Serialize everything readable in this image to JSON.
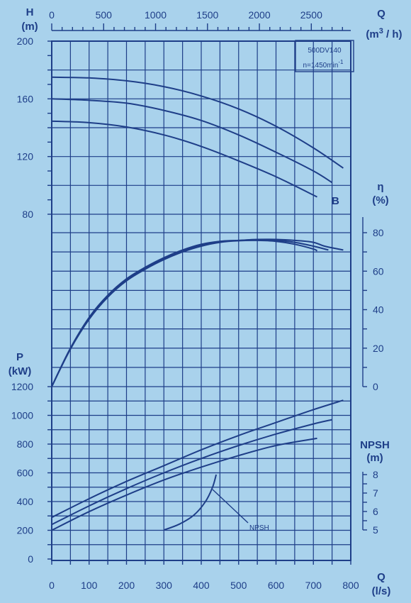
{
  "chart_data": {
    "type": "line",
    "title": "500DV140",
    "subtitle": "n=1450min-1",
    "axes": {
      "q_ls": {
        "label": "Q",
        "unit": "(l/s)",
        "range": [
          0,
          800
        ],
        "ticks": [
          0,
          100,
          200,
          300,
          400,
          500,
          600,
          700,
          800
        ]
      },
      "q_m3h": {
        "label": "Q",
        "unit": "(m3 / h)",
        "range": [
          0,
          2880
        ],
        "ticks": [
          0,
          500,
          1000,
          1500,
          2000,
          2500
        ]
      },
      "head": {
        "label": "H",
        "unit": "(m)",
        "range": [
          80,
          200
        ],
        "ticks": [
          80,
          120,
          160,
          200
        ]
      },
      "eff": {
        "label": "η",
        "unit": "(%)",
        "range": [
          0,
          80
        ],
        "ticks": [
          0,
          20,
          40,
          60,
          80
        ]
      },
      "power": {
        "label": "P",
        "unit": "(kW)",
        "range": [
          0,
          1200
        ],
        "ticks": [
          0,
          200,
          400,
          600,
          800,
          1000,
          1200
        ]
      },
      "npsh": {
        "label": "NPSH",
        "unit": "(m)",
        "range": [
          5,
          8
        ],
        "ticks": [
          5,
          6,
          7,
          8
        ]
      }
    },
    "head_series": [
      {
        "points": [
          [
            0,
            175
          ],
          [
            100,
            174.5
          ],
          [
            200,
            172.5
          ],
          [
            300,
            168.5
          ],
          [
            400,
            162
          ],
          [
            500,
            153
          ],
          [
            600,
            141
          ],
          [
            700,
            126
          ],
          [
            780,
            112
          ]
        ]
      },
      {
        "points": [
          [
            0,
            160
          ],
          [
            100,
            159
          ],
          [
            200,
            157
          ],
          [
            300,
            152
          ],
          [
            400,
            145
          ],
          [
            500,
            135
          ],
          [
            600,
            123
          ],
          [
            700,
            110
          ],
          [
            750,
            102
          ]
        ]
      },
      {
        "points": [
          [
            0,
            144.5
          ],
          [
            100,
            143.5
          ],
          [
            200,
            140.5
          ],
          [
            300,
            135
          ],
          [
            400,
            127
          ],
          [
            500,
            117
          ],
          [
            600,
            106
          ],
          [
            710,
            92
          ]
        ],
        "label": "B"
      }
    ],
    "efficiency_series": [
      {
        "points": [
          [
            0,
            0
          ],
          [
            50,
            20
          ],
          [
            100,
            36
          ],
          [
            150,
            47.5
          ],
          [
            200,
            56
          ],
          [
            250,
            62
          ],
          [
            300,
            67
          ],
          [
            350,
            71
          ],
          [
            400,
            74
          ],
          [
            450,
            75.5
          ],
          [
            500,
            76
          ],
          [
            550,
            76.5
          ],
          [
            600,
            76.5
          ],
          [
            650,
            76
          ],
          [
            700,
            75
          ],
          [
            730,
            73
          ],
          [
            780,
            71
          ]
        ]
      },
      {
        "points": [
          [
            0,
            0
          ],
          [
            50,
            20
          ],
          [
            100,
            35.5
          ],
          [
            150,
            47
          ],
          [
            200,
            55.5
          ],
          [
            250,
            61.5
          ],
          [
            300,
            66.5
          ],
          [
            350,
            70.5
          ],
          [
            400,
            73.5
          ],
          [
            450,
            75.5
          ],
          [
            500,
            76
          ],
          [
            550,
            76.3
          ],
          [
            600,
            76
          ],
          [
            650,
            75
          ],
          [
            700,
            73
          ],
          [
            740,
            71
          ]
        ]
      },
      {
        "points": [
          [
            0,
            0
          ],
          [
            50,
            19.5
          ],
          [
            100,
            35
          ],
          [
            150,
            46.5
          ],
          [
            200,
            55
          ],
          [
            250,
            61
          ],
          [
            300,
            66
          ],
          [
            350,
            70
          ],
          [
            400,
            73
          ],
          [
            450,
            75
          ],
          [
            500,
            75.8
          ],
          [
            550,
            76
          ],
          [
            600,
            75.5
          ],
          [
            650,
            74
          ],
          [
            700,
            71.5
          ],
          [
            710,
            70.5
          ]
        ]
      }
    ],
    "power_series": [
      {
        "points": [
          [
            0,
            290
          ],
          [
            100,
            420
          ],
          [
            200,
            540
          ],
          [
            300,
            650
          ],
          [
            400,
            760
          ],
          [
            500,
            860
          ],
          [
            600,
            950
          ],
          [
            700,
            1040
          ],
          [
            780,
            1105
          ]
        ]
      },
      {
        "points": [
          [
            0,
            240
          ],
          [
            100,
            370
          ],
          [
            200,
            490
          ],
          [
            300,
            600
          ],
          [
            400,
            700
          ],
          [
            500,
            790
          ],
          [
            600,
            870
          ],
          [
            700,
            940
          ],
          [
            750,
            970
          ]
        ]
      },
      {
        "points": [
          [
            0,
            200
          ],
          [
            100,
            330
          ],
          [
            200,
            445
          ],
          [
            300,
            550
          ],
          [
            400,
            640
          ],
          [
            500,
            720
          ],
          [
            600,
            790
          ],
          [
            710,
            840
          ]
        ]
      }
    ],
    "npsh_series": {
      "label": "NPSH",
      "points": [
        [
          300,
          5
        ],
        [
          340,
          5.3
        ],
        [
          380,
          5.8
        ],
        [
          410,
          6.5
        ],
        [
          430,
          7.3
        ],
        [
          440,
          8
        ]
      ]
    }
  }
}
